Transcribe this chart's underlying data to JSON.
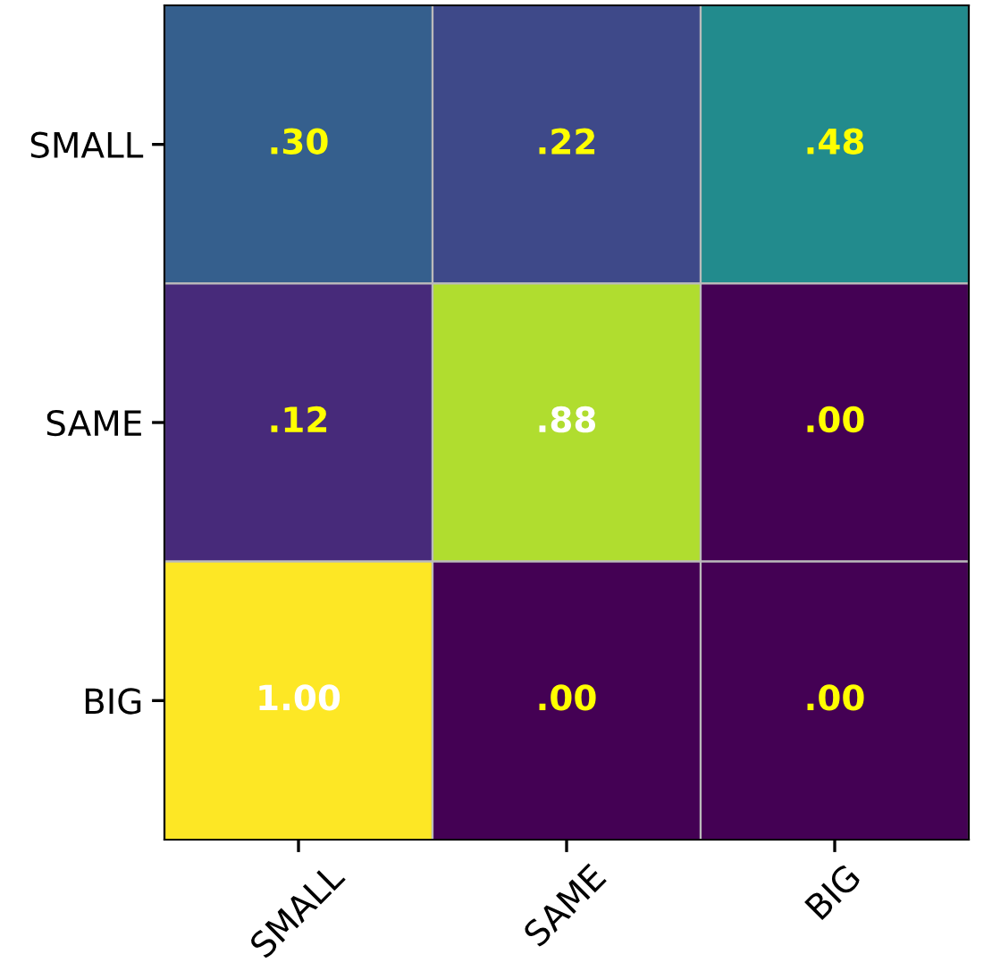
{
  "chart_data": {
    "type": "heatmap",
    "categories": [
      "SMALL",
      "SAME",
      "BIG"
    ],
    "y_categories": [
      "SMALL",
      "SAME",
      "BIG"
    ],
    "cells": [
      [
        0.3,
        0.22,
        0.48
      ],
      [
        0.12,
        0.88,
        0.0
      ],
      [
        1.0,
        0.0,
        0.0
      ]
    ],
    "cell_labels": [
      [
        ".30",
        ".22",
        ".48"
      ],
      [
        ".12",
        ".88",
        ".00"
      ],
      [
        "1.00",
        ".00",
        ".00"
      ]
    ]
  }
}
